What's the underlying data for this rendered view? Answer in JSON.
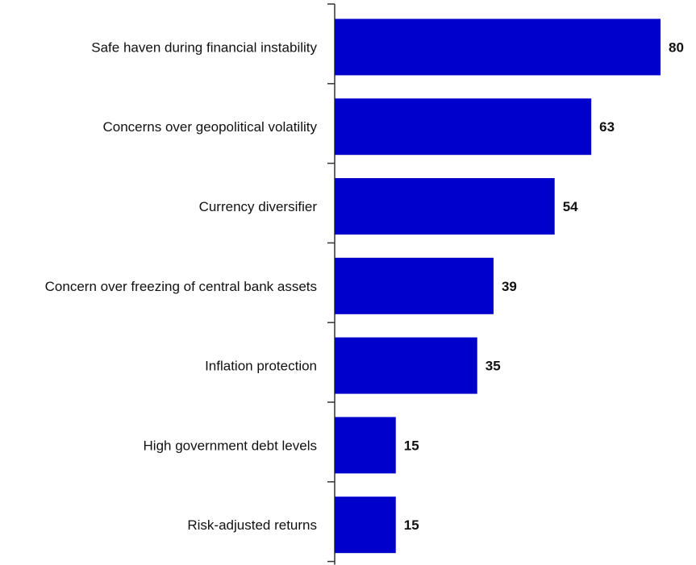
{
  "chart_data": {
    "type": "bar",
    "orientation": "horizontal",
    "categories": [
      "Safe haven during financial instability",
      "Concerns over geopolitical volatility",
      "Currency diversifier",
      "Concern over freezing of central bank assets",
      "Inflation protection",
      "High government debt levels",
      "Risk-adjusted returns"
    ],
    "values": [
      80,
      63,
      54,
      39,
      35,
      15,
      15
    ],
    "data_labels": [
      "80",
      "63",
      "54",
      "39",
      "35",
      "15",
      "15"
    ],
    "title": "",
    "xlabel": "",
    "ylabel": "",
    "xlim": [
      0,
      80
    ],
    "grid": false,
    "legend": "none",
    "bar_color": "#0000CC",
    "axis_color": "#333333"
  }
}
